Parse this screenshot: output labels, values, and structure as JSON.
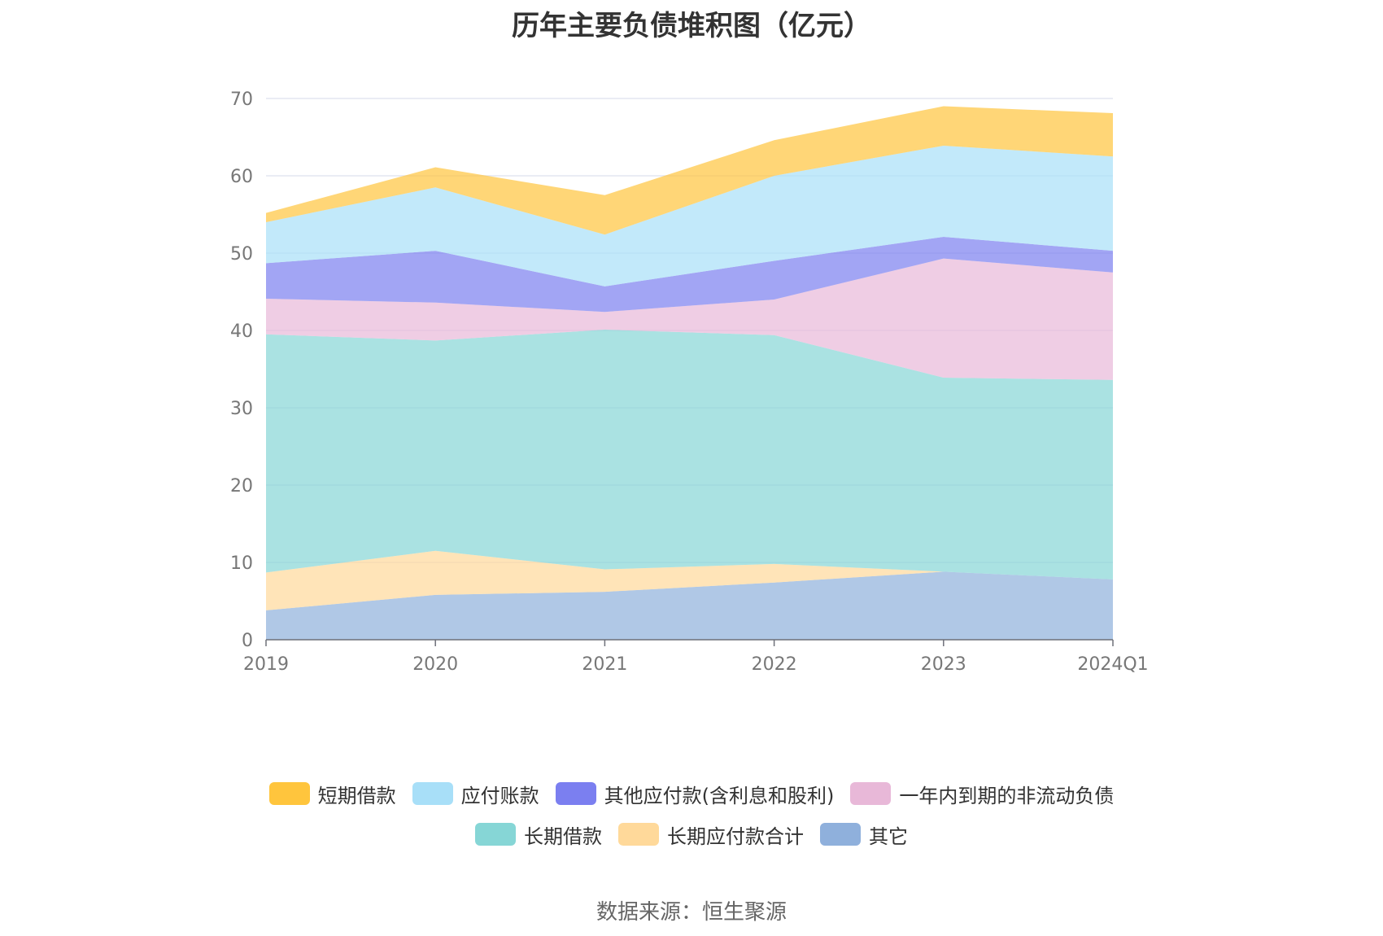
{
  "chart_data": {
    "type": "area",
    "stacked": true,
    "title": "历年主要负债堆积图（亿元）",
    "categories": [
      "2019",
      "2020",
      "2021",
      "2022",
      "2023",
      "2024Q1"
    ],
    "ylim": [
      0,
      70
    ],
    "yticks": [
      0,
      10,
      20,
      30,
      40,
      50,
      60,
      70
    ],
    "grid": true,
    "legend_position": "bottom",
    "series": [
      {
        "name": "其它",
        "color": "#8fb0dc",
        "values": [
          3.8,
          5.8,
          6.2,
          7.4,
          8.8,
          7.8
        ]
      },
      {
        "name": "长期应付款合计",
        "color": "#ffd99a",
        "values": [
          4.9,
          5.7,
          2.9,
          2.4,
          0.0,
          0.0
        ]
      },
      {
        "name": "长期借款",
        "color": "#86d6d6",
        "values": [
          30.8,
          27.2,
          31.0,
          29.6,
          25.1,
          25.8
        ]
      },
      {
        "name": "一年内到期的非流动负债",
        "color": "#e8b8d8",
        "values": [
          4.6,
          4.9,
          2.3,
          4.6,
          15.4,
          13.9
        ]
      },
      {
        "name": "其他应付款(含利息和股利)",
        "color": "#7b7ff0",
        "values": [
          4.6,
          6.7,
          3.3,
          5.0,
          2.8,
          2.8
        ]
      },
      {
        "name": "应付账款",
        "color": "#a8dff8",
        "values": [
          5.3,
          8.2,
          6.7,
          11.0,
          11.8,
          12.2
        ]
      },
      {
        "name": "短期借款",
        "color": "#ffc53d",
        "values": [
          1.2,
          2.6,
          5.1,
          4.6,
          5.1,
          5.6
        ]
      }
    ]
  },
  "legend": {
    "rows": [
      [
        {
          "label": "短期借款",
          "color": "#ffc53d"
        },
        {
          "label": "应付账款",
          "color": "#a8dff8"
        },
        {
          "label": "其他应付款(含利息和股利)",
          "color": "#7b7ff0"
        },
        {
          "label": "一年内到期的非流动负债",
          "color": "#e8b8d8"
        }
      ],
      [
        {
          "label": "长期借款",
          "color": "#86d6d6"
        },
        {
          "label": "长期应付款合计",
          "color": "#ffd99a"
        },
        {
          "label": "其它",
          "color": "#8fb0dc"
        }
      ]
    ]
  },
  "source": "数据来源：恒生聚源"
}
